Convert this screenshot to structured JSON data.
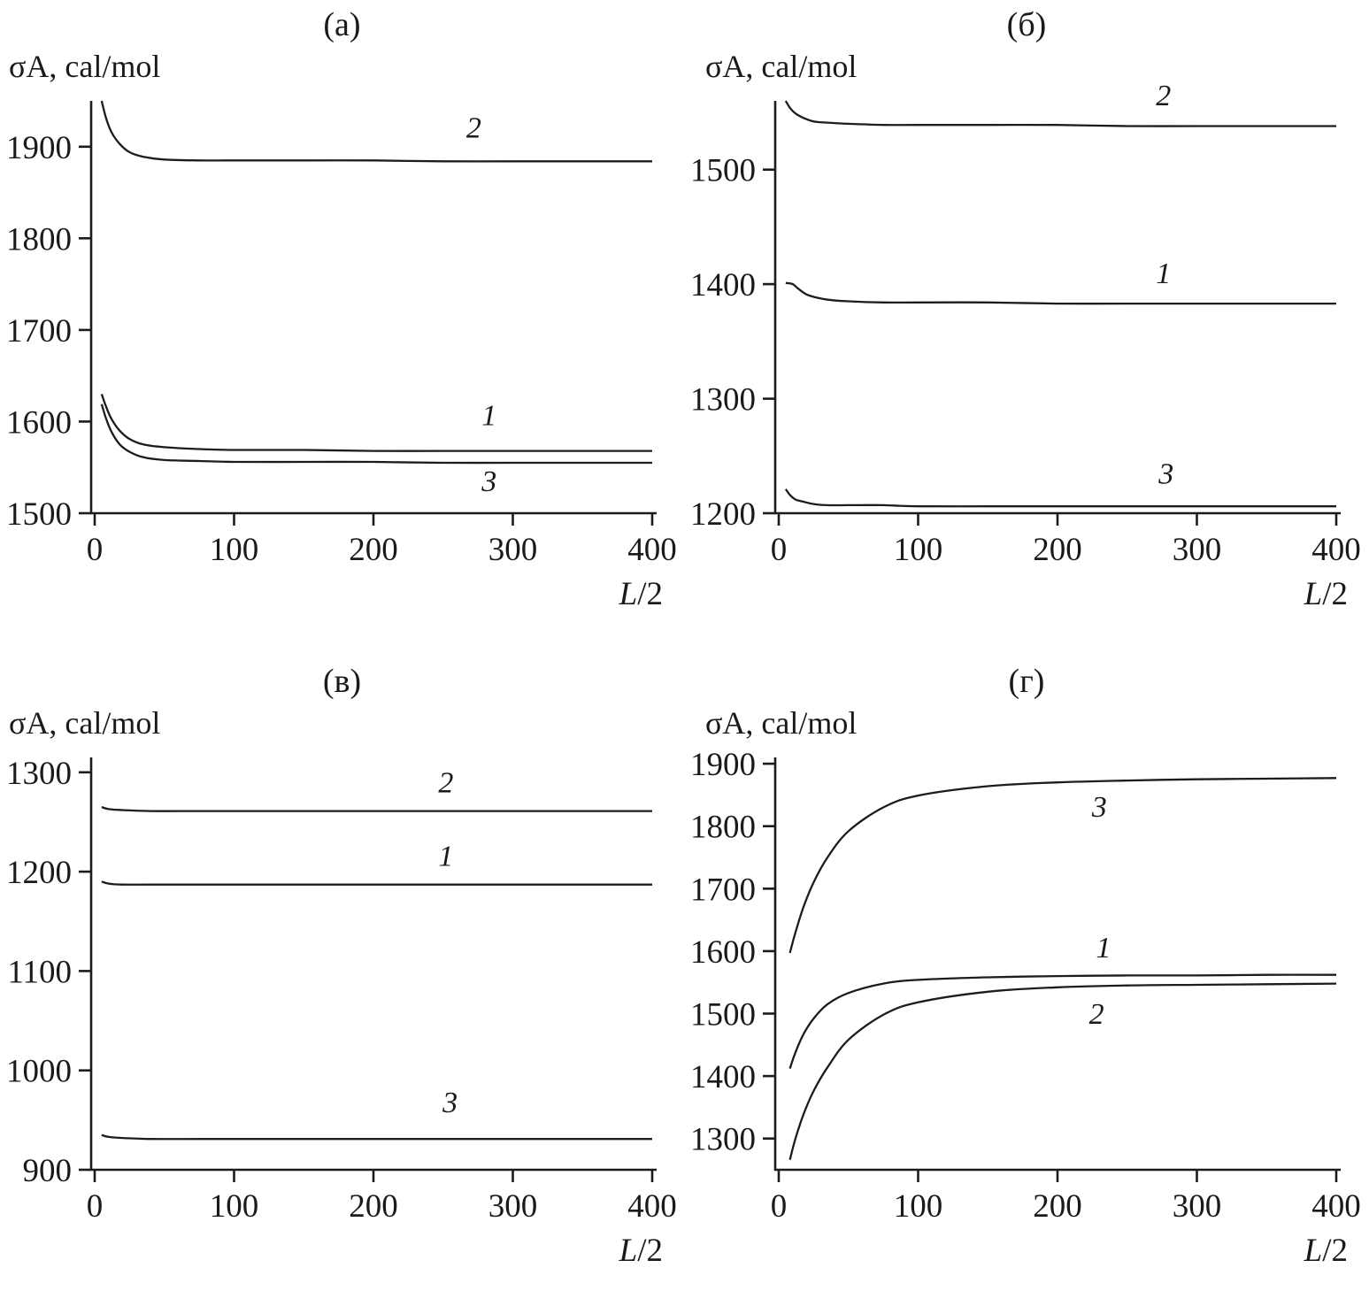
{
  "figure": {
    "background": "#ffffff",
    "line_color": "#1c1c1c"
  },
  "chart_data": [
    {
      "type": "line",
      "panel_label": "(а)",
      "ylabel": "σA, cal/mol",
      "xlabel_italic": "L",
      "xlabel_rest": "/2",
      "grid": false,
      "legend": "inline-curve-labels",
      "xlim": [
        0,
        400
      ],
      "ylim": [
        1500,
        1950
      ],
      "xticks": [
        0,
        100,
        200,
        300,
        400
      ],
      "yticks": [
        1500,
        1600,
        1700,
        1800,
        1900
      ],
      "series": [
        {
          "name": "1",
          "x": [
            5,
            8,
            12,
            18,
            25,
            35,
            50,
            75,
            100,
            150,
            200,
            250,
            300,
            350,
            400
          ],
          "y": [
            1630,
            1617,
            1603,
            1590,
            1581,
            1575,
            1572,
            1570,
            1569,
            1569,
            1568,
            1568,
            1568,
            1568,
            1568
          ],
          "label": {
            "text": "1",
            "x": 283,
            "y": 1596
          }
        },
        {
          "name": "2",
          "x": [
            5,
            8,
            12,
            18,
            25,
            35,
            50,
            75,
            100,
            150,
            200,
            250,
            300,
            350,
            400
          ],
          "y": [
            1950,
            1932,
            1916,
            1903,
            1894,
            1889,
            1886,
            1885,
            1885,
            1885,
            1885,
            1884,
            1884,
            1884,
            1884
          ],
          "label": {
            "text": "2",
            "x": 272,
            "y": 1910
          }
        },
        {
          "name": "3",
          "x": [
            5,
            8,
            12,
            18,
            25,
            35,
            50,
            75,
            100,
            150,
            200,
            250,
            300,
            350,
            400
          ],
          "y": [
            1619,
            1604,
            1589,
            1575,
            1567,
            1561,
            1558,
            1557,
            1556,
            1556,
            1556,
            1555,
            1555,
            1555,
            1555
          ],
          "label": {
            "text": "3",
            "x": 283,
            "y": 1524
          }
        }
      ]
    },
    {
      "type": "line",
      "panel_label": "(б)",
      "ylabel": "σA, cal/mol",
      "xlabel_italic": "L",
      "xlabel_rest": "/2",
      "grid": false,
      "legend": "inline-curve-labels",
      "xlim": [
        0,
        400
      ],
      "ylim": [
        1200,
        1560
      ],
      "xticks": [
        0,
        100,
        200,
        300,
        400
      ],
      "yticks": [
        1200,
        1300,
        1400,
        1500
      ],
      "series": [
        {
          "name": "1",
          "x": [
            5,
            10,
            14,
            20,
            28,
            38,
            50,
            75,
            100,
            150,
            200,
            250,
            300,
            350,
            400
          ],
          "y": [
            1401,
            1400,
            1396,
            1391,
            1388,
            1386,
            1385,
            1384,
            1384,
            1384,
            1383,
            1383,
            1383,
            1383,
            1383
          ],
          "label": {
            "text": "1",
            "x": 276,
            "y": 1401
          }
        },
        {
          "name": "2",
          "x": [
            5,
            8,
            12,
            18,
            25,
            35,
            50,
            75,
            100,
            150,
            200,
            250,
            300,
            350,
            400
          ],
          "y": [
            1560,
            1554,
            1549,
            1545,
            1542,
            1541,
            1540,
            1539,
            1539,
            1539,
            1539,
            1538,
            1538,
            1538,
            1538
          ],
          "label": {
            "text": "2",
            "x": 276,
            "y": 1556
          }
        },
        {
          "name": "3",
          "x": [
            5,
            8,
            12,
            18,
            25,
            35,
            50,
            75,
            100,
            150,
            200,
            250,
            300,
            350,
            400
          ],
          "y": [
            1221,
            1216,
            1212,
            1210,
            1208,
            1207,
            1207,
            1207,
            1206,
            1206,
            1206,
            1206,
            1206,
            1206,
            1206
          ],
          "label": {
            "text": "3",
            "x": 278,
            "y": 1226
          }
        }
      ]
    },
    {
      "type": "line",
      "panel_label": "(в)",
      "ylabel": "σA, cal/mol",
      "xlabel_italic": "L",
      "xlabel_rest": "/2",
      "grid": false,
      "legend": "inline-curve-labels",
      "xlim": [
        0,
        400
      ],
      "ylim": [
        900,
        1315
      ],
      "xticks": [
        0,
        100,
        200,
        300,
        400
      ],
      "yticks": [
        900,
        1000,
        1100,
        1200,
        1300
      ],
      "series": [
        {
          "name": "1",
          "x": [
            5,
            10,
            20,
            40,
            80,
            150,
            250,
            400
          ],
          "y": [
            1190,
            1188,
            1187,
            1187,
            1187,
            1187,
            1187,
            1187
          ],
          "label": {
            "text": "1",
            "x": 252,
            "y": 1206
          }
        },
        {
          "name": "2",
          "x": [
            5,
            10,
            20,
            40,
            80,
            150,
            250,
            400
          ],
          "y": [
            1265,
            1263,
            1262,
            1261,
            1261,
            1261,
            1261,
            1261
          ],
          "label": {
            "text": "2",
            "x": 252,
            "y": 1280
          }
        },
        {
          "name": "3",
          "x": [
            5,
            10,
            20,
            40,
            80,
            150,
            250,
            400
          ],
          "y": [
            935,
            933,
            932,
            931,
            931,
            931,
            931,
            931
          ],
          "label": {
            "text": "3",
            "x": 255,
            "y": 958
          }
        }
      ]
    },
    {
      "type": "line",
      "panel_label": "(г)",
      "ylabel": "σA, cal/mol",
      "xlabel_italic": "L",
      "xlabel_rest": "/2",
      "grid": false,
      "legend": "inline-curve-labels",
      "xlim": [
        0,
        400
      ],
      "ylim": [
        1250,
        1910
      ],
      "xticks": [
        0,
        100,
        200,
        300,
        400
      ],
      "yticks": [
        1300,
        1400,
        1500,
        1600,
        1700,
        1800,
        1900
      ],
      "series": [
        {
          "name": "1",
          "x": [
            8,
            12,
            18,
            25,
            35,
            50,
            75,
            100,
            150,
            200,
            250,
            300,
            350,
            400
          ],
          "y": [
            1412,
            1438,
            1468,
            1492,
            1515,
            1533,
            1548,
            1554,
            1558,
            1560,
            1561,
            1561,
            1562,
            1562
          ],
          "label": {
            "text": "1",
            "x": 233,
            "y": 1590
          }
        },
        {
          "name": "2",
          "x": [
            8,
            12,
            18,
            25,
            35,
            50,
            75,
            100,
            150,
            200,
            250,
            300,
            350,
            400
          ],
          "y": [
            1266,
            1300,
            1340,
            1376,
            1414,
            1458,
            1498,
            1518,
            1535,
            1542,
            1545,
            1546,
            1547,
            1548
          ],
          "label": {
            "text": "2",
            "x": 228,
            "y": 1484
          }
        },
        {
          "name": "3",
          "x": [
            8,
            12,
            18,
            25,
            35,
            50,
            75,
            100,
            150,
            200,
            250,
            300,
            350,
            400
          ],
          "y": [
            1597,
            1630,
            1672,
            1710,
            1750,
            1792,
            1830,
            1849,
            1864,
            1870,
            1873,
            1875,
            1876,
            1877
          ],
          "label": {
            "text": "3",
            "x": 230,
            "y": 1815
          }
        }
      ]
    }
  ]
}
